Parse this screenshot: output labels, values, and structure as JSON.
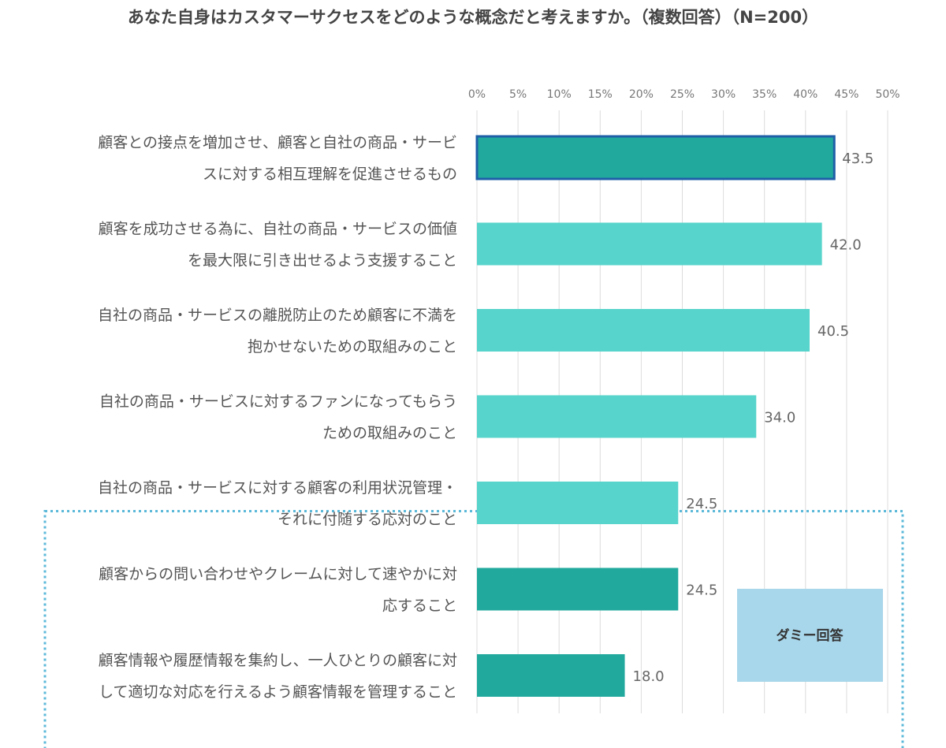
{
  "title": "あなた自身はカスタマーサクセスをどのような概念だと考えますか。（複数回答）（N=200）",
  "chart_data": {
    "type": "bar",
    "orientation": "horizontal",
    "title": "あなた自身はカスタマーサクセスをどのような概念だと考えますか。（複数回答）（N=200）",
    "xlim": [
      0,
      50
    ],
    "x_ticks": [
      "0%",
      "5%",
      "10%",
      "15%",
      "20%",
      "25%",
      "30%",
      "35%",
      "40%",
      "45%",
      "50%"
    ],
    "grid": true,
    "categories": [
      [
        "顧客との接点を増加させ、顧客と自社の商品・サービ",
        "スに対する相互理解を促進させるもの"
      ],
      [
        "顧客を成功させる為に、自社の商品・サービスの価値",
        "を最大限に引き出せるよう支援すること"
      ],
      [
        "自社の商品・サービスの離脱防止のため顧客に不満を",
        "抱かせないための取組みのこと"
      ],
      [
        "自社の商品・サービスに対するファンになってもらう",
        "ための取組みのこと"
      ],
      [
        "自社の商品・サービスに対する顧客の利用状況管理・",
        "それに付随する応対のこと"
      ],
      [
        "顧客からの問い合わせやクレームに対して速やかに対",
        "応すること"
      ],
      [
        "顧客情報や履歴情報を集約し、一人ひとりの顧客に対",
        "して適切な対応を行えるよう顧客情報を管理すること"
      ]
    ],
    "values": [
      43.5,
      42.0,
      40.5,
      34.0,
      24.5,
      24.5,
      18.0
    ],
    "value_labels": [
      "43.5",
      "42.0",
      "40.5",
      "34.0",
      "24.5",
      "24.5",
      "18.0"
    ],
    "bar_colors": [
      "#22A99E",
      "#57D4CB",
      "#57D4CB",
      "#57D4CB",
      "#57D4CB",
      "#22A99E",
      "#22A99E"
    ],
    "highlight_outline": "#1F5FA8",
    "dummy_group": {
      "label": "ダミー回答",
      "members": [
        5,
        6
      ],
      "box_color": "#A8D6EA",
      "border_color": "#5BB8D9"
    }
  }
}
